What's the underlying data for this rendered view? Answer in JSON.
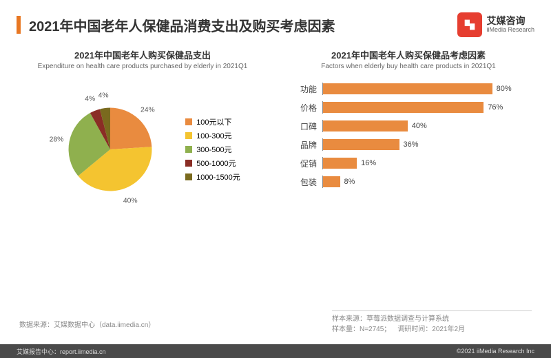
{
  "header": {
    "title": "2021年中国老年人保健品消费支出及购买考虑因素",
    "logo_cn": "艾媒咨询",
    "logo_en": "iiMedia Research"
  },
  "pie_chart": {
    "type": "pie",
    "title_cn": "2021年中国老年人购买保健品支出",
    "title_en": "Expenditure on health care products purchased by elderly in 2021Q1",
    "slices": [
      {
        "label": "100元以下",
        "value": 24,
        "color": "#e98b3f",
        "display": "24%"
      },
      {
        "label": "100-300元",
        "value": 40,
        "color": "#f4c430",
        "display": "40%"
      },
      {
        "label": "300-500元",
        "value": 28,
        "color": "#8fb04e",
        "display": "28%"
      },
      {
        "label": "500-1000元",
        "value": 4,
        "color": "#8a2d25",
        "display": "4%"
      },
      {
        "label": "1000-1500元",
        "value": 4,
        "color": "#7a6a1e",
        "display": "4%"
      }
    ],
    "label_fontsize": 12,
    "start_angle_deg": 0
  },
  "bar_chart": {
    "type": "bar-horizontal",
    "title_cn": "2021年中国老年人购买保健品考虑因素",
    "title_en": "Factors when elderly  buy health care products in 2021Q1",
    "bar_color": "#e98b3f",
    "xlim": [
      0,
      100
    ],
    "xtick_step": 20,
    "axis_color": "#888888",
    "label_fontsize": 12,
    "value_fontsize": 11,
    "bars": [
      {
        "label": "功能",
        "value": 80,
        "display": "80%"
      },
      {
        "label": "价格",
        "value": 76,
        "display": "76%"
      },
      {
        "label": "口碑",
        "value": 40,
        "display": "40%"
      },
      {
        "label": "品牌",
        "value": 36,
        "display": "36%"
      },
      {
        "label": "促销",
        "value": 16,
        "display": "16%"
      },
      {
        "label": "包装",
        "value": 8,
        "display": "8%"
      }
    ]
  },
  "source_left": "数据来源：艾媒数据中心（data.iimedia.cn）",
  "source_right": {
    "line1": "样本来源：草莓派数据调查与计算系统",
    "line2a": "样本量：N=2745；",
    "line2b": "调研时间：2021年2月"
  },
  "footer": {
    "left": "艾媒报告中心：report.iimedia.cn",
    "right": "©2021  iiMedia Research  Inc"
  },
  "colors": {
    "accent": "#e87722",
    "logo_bg": "#e63e30",
    "footer_bg": "#4a4a4a",
    "text": "#333333",
    "muted": "#888888",
    "background": "#ffffff"
  }
}
